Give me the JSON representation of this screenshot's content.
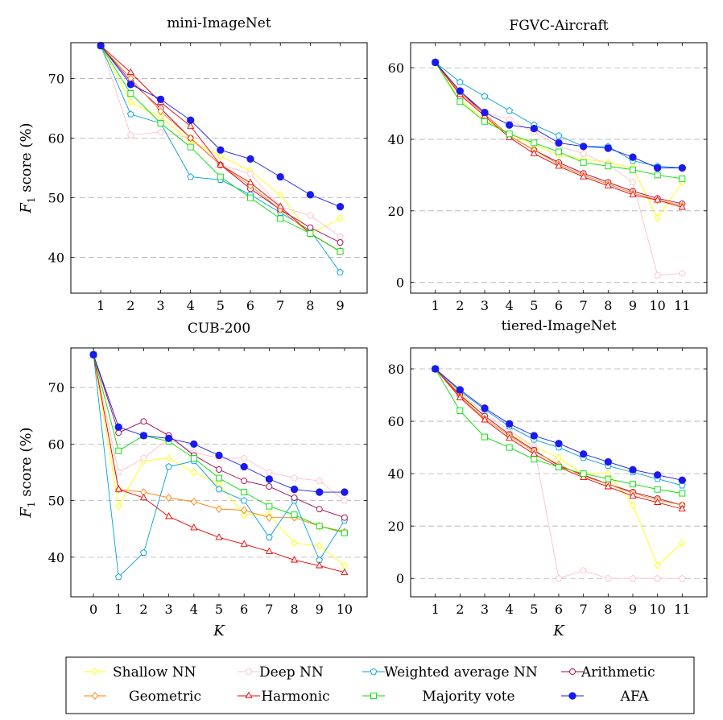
{
  "colors": {
    "Shallow NN": "#ffff00",
    "Deep NN": "#ffc0cb",
    "Weighted average NN": "#00a0e0",
    "Arithmetic": "#a0004a",
    "Geometric": "#ff8000",
    "Harmonic": "#ee0000",
    "Majority vote": "#00e000",
    "AFA": "#1a1aee"
  },
  "markers": {
    "Shallow NN": "diamond",
    "Deep NN": "pentagon",
    "Weighted average NN": "pentagon",
    "Arithmetic": "circle",
    "Geometric": "diamond",
    "Harmonic": "triangle",
    "Majority vote": "square",
    "AFA": "filled-circle"
  },
  "legend": {
    "entries": [
      "Shallow NN",
      "Deep NN",
      "Weighted average NN",
      "Arithmetic",
      "Geometric",
      "Harmonic",
      "Majority vote",
      "AFA"
    ]
  },
  "chart_data": [
    {
      "type": "line",
      "title": "mini-ImageNet",
      "xlabel": "",
      "ylabel": "F1 score (%)",
      "x": [
        1,
        2,
        3,
        4,
        5,
        6,
        7,
        8,
        9
      ],
      "xticks": [
        1,
        2,
        3,
        4,
        5,
        6,
        7,
        8,
        9
      ],
      "xlim": [
        0.0,
        9.9
      ],
      "yticks": [
        40,
        50,
        60,
        70
      ],
      "ylim": [
        34,
        76
      ],
      "grid": "horizontal dashed",
      "series": [
        {
          "name": "Shallow NN",
          "values": [
            75.5,
            66.0,
            63.5,
            59.5,
            57.0,
            54.5,
            50.5,
            44.0,
            46.5
          ]
        },
        {
          "name": "Deep NN",
          "values": [
            75.5,
            60.5,
            61.0,
            60.0,
            55.5,
            54.0,
            48.5,
            47.0,
            43.5
          ]
        },
        {
          "name": "Weighted average NN",
          "values": [
            75.5,
            64.0,
            62.5,
            53.5,
            53.0,
            50.5,
            47.5,
            44.5,
            37.5
          ]
        },
        {
          "name": "Arithmetic",
          "values": [
            75.5,
            69.5,
            65.0,
            60.0,
            55.5,
            51.5,
            48.0,
            45.0,
            42.5
          ]
        },
        {
          "name": "Geometric",
          "values": [
            75.5,
            70.0,
            64.5,
            60.0,
            55.5,
            52.0,
            48.0,
            44.0,
            41.0
          ]
        },
        {
          "name": "Harmonic",
          "values": [
            75.5,
            71.0,
            66.0,
            62.0,
            55.5,
            52.5,
            48.5,
            44.0,
            41.0
          ]
        },
        {
          "name": "Majority vote",
          "values": [
            75.5,
            67.5,
            62.5,
            58.5,
            53.5,
            50.0,
            46.5,
            44.0,
            41.0
          ]
        },
        {
          "name": "AFA",
          "values": [
            75.5,
            69.0,
            66.5,
            63.0,
            58.0,
            56.5,
            53.5,
            50.5,
            48.5
          ]
        }
      ]
    },
    {
      "type": "line",
      "title": "FGVC-Aircraft",
      "xlabel": "",
      "ylabel": "",
      "x": [
        1,
        2,
        3,
        4,
        5,
        6,
        7,
        8,
        9,
        10,
        11
      ],
      "xticks": [
        1,
        2,
        3,
        4,
        5,
        6,
        7,
        8,
        9,
        10,
        11
      ],
      "xlim": [
        0.0,
        12.0
      ],
      "yticks": [
        0,
        20,
        40,
        60
      ],
      "ylim": [
        -3,
        67
      ],
      "grid": "horizontal dashed",
      "series": [
        {
          "name": "Shallow NN",
          "values": [
            61.5,
            51.0,
            45.5,
            41.5,
            38.5,
            35.5,
            34.5,
            33.5,
            32.0,
            18.0,
            28.0
          ]
        },
        {
          "name": "Deep NN",
          "values": [
            61.5,
            52.0,
            47.5,
            45.5,
            42.0,
            38.0,
            36.0,
            33.0,
            28.0,
            2.0,
            2.5
          ]
        },
        {
          "name": "Weighted average NN",
          "values": [
            61.5,
            56.0,
            52.0,
            48.0,
            44.0,
            41.0,
            38.0,
            38.0,
            34.0,
            32.5,
            32.0
          ]
        },
        {
          "name": "Arithmetic",
          "values": [
            61.5,
            53.5,
            47.0,
            41.0,
            37.0,
            33.5,
            30.5,
            28.0,
            25.5,
            23.5,
            22.0
          ]
        },
        {
          "name": "Geometric",
          "values": [
            61.5,
            53.0,
            47.0,
            41.0,
            37.0,
            33.0,
            30.0,
            27.5,
            25.0,
            23.0,
            21.5
          ]
        },
        {
          "name": "Harmonic",
          "values": [
            61.5,
            52.5,
            46.5,
            40.5,
            36.0,
            32.5,
            29.5,
            27.0,
            24.5,
            23.0,
            21.0
          ]
        },
        {
          "name": "Majority vote",
          "values": [
            61.5,
            50.5,
            45.0,
            41.5,
            39.0,
            36.5,
            33.5,
            32.5,
            31.5,
            30.0,
            29.0
          ]
        },
        {
          "name": "AFA",
          "values": [
            61.5,
            53.5,
            47.5,
            44.0,
            43.0,
            39.0,
            38.0,
            37.5,
            35.0,
            32.0,
            32.0
          ]
        }
      ]
    },
    {
      "type": "line",
      "title": "CUB-200",
      "xlabel": "K",
      "ylabel": "F1 score (%)",
      "x": [
        0,
        1,
        2,
        3,
        4,
        5,
        6,
        7,
        8,
        9,
        10
      ],
      "xticks": [
        0,
        1,
        2,
        3,
        4,
        5,
        6,
        7,
        8,
        9,
        10
      ],
      "xlim": [
        -0.9,
        10.9
      ],
      "yticks": [
        40,
        50,
        60,
        70
      ],
      "ylim": [
        33,
        77
      ],
      "grid": "horizontal dashed",
      "series": [
        {
          "name": "Shallow NN",
          "values": [
            75.8,
            49.0,
            57.0,
            57.5,
            55.0,
            53.0,
            47.5,
            47.5,
            42.5,
            42.0,
            38.5
          ]
        },
        {
          "name": "Deep NN",
          "values": [
            75.8,
            55.0,
            57.5,
            61.0,
            58.5,
            57.5,
            57.5,
            55.0,
            54.0,
            53.5,
            50.0
          ]
        },
        {
          "name": "Weighted average NN",
          "values": [
            75.8,
            36.5,
            40.8,
            56.0,
            57.0,
            52.0,
            50.0,
            43.5,
            50.0,
            39.5,
            46.5
          ]
        },
        {
          "name": "Arithmetic",
          "values": [
            75.8,
            62.0,
            64.0,
            61.5,
            58.0,
            55.5,
            53.5,
            52.5,
            50.5,
            48.5,
            47.0
          ]
        },
        {
          "name": "Geometric",
          "values": [
            75.8,
            52.0,
            51.5,
            50.5,
            49.8,
            48.5,
            48.3,
            47.0,
            47.0,
            45.5,
            44.5
          ]
        },
        {
          "name": "Harmonic",
          "values": [
            75.8,
            52.0,
            50.5,
            47.2,
            45.2,
            43.5,
            42.3,
            41.0,
            39.5,
            38.5,
            37.3
          ]
        },
        {
          "name": "Majority vote",
          "values": [
            75.8,
            58.8,
            61.5,
            60.5,
            57.5,
            54.0,
            51.5,
            49.0,
            47.5,
            45.5,
            44.3
          ]
        },
        {
          "name": "AFA",
          "values": [
            75.8,
            63.0,
            61.5,
            61.0,
            60.0,
            58.0,
            56.0,
            53.8,
            52.0,
            51.5,
            51.5
          ]
        }
      ]
    },
    {
      "type": "line",
      "title": "tiered-ImageNet",
      "xlabel": "K",
      "ylabel": "",
      "x": [
        1,
        2,
        3,
        4,
        5,
        6,
        7,
        8,
        9,
        10,
        11
      ],
      "xticks": [
        1,
        2,
        3,
        4,
        5,
        6,
        7,
        8,
        9,
        10,
        11
      ],
      "xlim": [
        0.0,
        12.0
      ],
      "yticks": [
        0,
        20,
        40,
        60,
        80
      ],
      "ylim": [
        -7,
        88
      ],
      "grid": "horizontal dashed",
      "series": [
        {
          "name": "Shallow NN",
          "values": [
            80.0,
            70.5,
            62.0,
            55.0,
            50.5,
            46.0,
            40.0,
            40.0,
            28.0,
            5.0,
            13.5
          ]
        },
        {
          "name": "Deep NN",
          "values": [
            80.0,
            71.0,
            63.0,
            56.5,
            50.5,
            0.0,
            3.0,
            0.0,
            0.0,
            0.0,
            0.0
          ]
        },
        {
          "name": "Weighted average NN",
          "values": [
            80.0,
            71.5,
            64.5,
            58.0,
            53.0,
            50.0,
            46.0,
            43.0,
            40.5,
            38.0,
            35.5
          ]
        },
        {
          "name": "Arithmetic",
          "values": [
            80.0,
            70.0,
            62.0,
            55.0,
            49.0,
            43.0,
            39.5,
            36.0,
            33.0,
            30.5,
            28.0
          ]
        },
        {
          "name": "Geometric",
          "values": [
            80.0,
            69.5,
            61.0,
            54.5,
            48.5,
            43.5,
            39.0,
            36.0,
            32.5,
            30.0,
            28.0
          ]
        },
        {
          "name": "Harmonic",
          "values": [
            80.0,
            69.0,
            60.5,
            53.5,
            47.5,
            42.5,
            38.5,
            35.0,
            31.5,
            29.0,
            26.5
          ]
        },
        {
          "name": "Majority vote",
          "values": [
            80.0,
            64.0,
            54.0,
            50.0,
            45.5,
            42.5,
            40.0,
            38.0,
            36.0,
            34.0,
            32.5
          ]
        },
        {
          "name": "AFA",
          "values": [
            80.0,
            72.0,
            65.0,
            59.0,
            54.5,
            51.5,
            47.5,
            44.5,
            41.5,
            39.5,
            37.5
          ]
        }
      ]
    }
  ]
}
